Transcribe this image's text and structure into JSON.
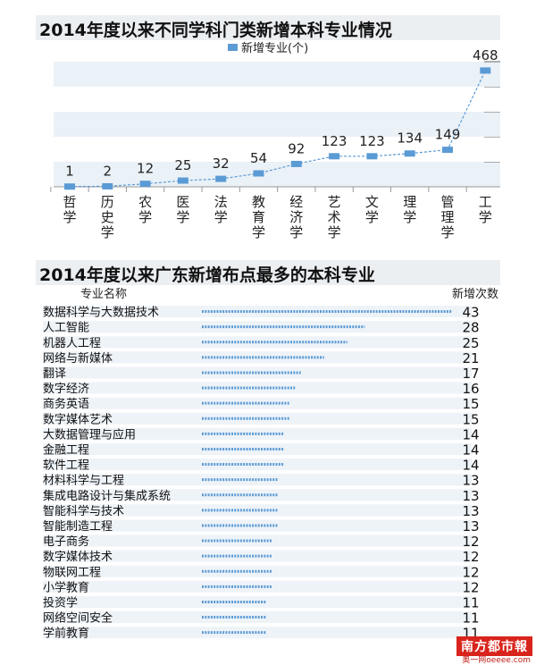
{
  "chart_data": [
    {
      "type": "line",
      "title": "2014年度以来不同学科门类新增本科专业情况",
      "legend": {
        "position": "top-center",
        "entries": [
          "新增专业(个)"
        ]
      },
      "series": [
        {
          "name": "新增专业(个)",
          "color": "#5b9bd5",
          "values": [
            1,
            2,
            12,
            25,
            32,
            54,
            92,
            123,
            123,
            134,
            149,
            468
          ]
        }
      ],
      "categories": [
        "哲学",
        "历史学",
        "农学",
        "医学",
        "法学",
        "教育学",
        "经济学",
        "艺术学",
        "文学",
        "理学",
        "管理学",
        "工学"
      ],
      "ylim": [
        0,
        500
      ],
      "grid": "horizontal bands"
    },
    {
      "type": "bar",
      "orientation": "horizontal",
      "title": "2014年度以来广东新增布点最多的本科专业",
      "column_headers": {
        "name": "专业名称",
        "value": "新增次数"
      },
      "categories": [
        "数据科学与大数据技术",
        "人工智能",
        "机器人工程",
        "网络与新媒体",
        "翻译",
        "数字经济",
        "商务英语",
        "数字媒体艺术",
        "大数据管理与应用",
        "金融工程",
        "软件工程",
        "材料科学与工程",
        "集成电路设计与集成系统",
        "智能科学与技术",
        "智能制造工程",
        "电子商务",
        "数字媒体技术",
        "物联网工程",
        "小学教育",
        "投资学",
        "网络空间安全",
        "学前教育"
      ],
      "values": [
        43,
        28,
        25,
        21,
        17,
        16,
        15,
        15,
        14,
        14,
        14,
        13,
        13,
        13,
        13,
        12,
        12,
        12,
        12,
        11,
        11,
        11
      ],
      "bar_color": "#5b9bd5"
    }
  ],
  "watermark": {
    "logo": "南方都市報",
    "site": "奥一网oeeee.com"
  }
}
